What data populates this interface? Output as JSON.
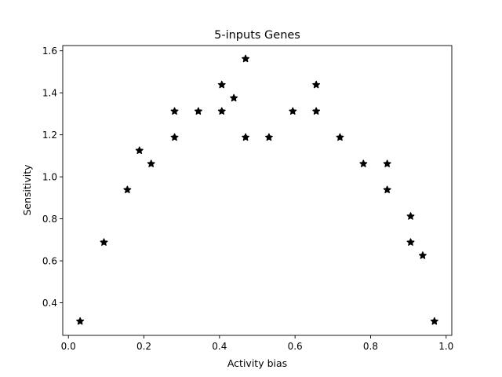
{
  "chart_data": {
    "type": "scatter",
    "title": "5-inputs Genes",
    "xlabel": "Activity bias",
    "ylabel": "Sensitivity",
    "xlim": [
      -0.015,
      1.015
    ],
    "ylim": [
      0.245,
      1.625
    ],
    "grid": false,
    "marker": "star",
    "marker_color": "#000000",
    "xticks": [
      {
        "value": 0.0,
        "label": "0.0"
      },
      {
        "value": 0.2,
        "label": "0.2"
      },
      {
        "value": 0.4,
        "label": "0.4"
      },
      {
        "value": 0.6,
        "label": "0.6"
      },
      {
        "value": 0.8,
        "label": "0.8"
      },
      {
        "value": 1.0,
        "label": "1.0"
      }
    ],
    "yticks": [
      {
        "value": 0.4,
        "label": "0.4"
      },
      {
        "value": 0.6,
        "label": "0.6"
      },
      {
        "value": 0.8,
        "label": "0.8"
      },
      {
        "value": 1.0,
        "label": "1.0"
      },
      {
        "value": 1.2,
        "label": "1.2"
      },
      {
        "value": 1.4,
        "label": "1.4"
      },
      {
        "value": 1.6,
        "label": "1.6"
      }
    ],
    "points": [
      {
        "x": 0.031,
        "y": 0.312
      },
      {
        "x": 0.094,
        "y": 0.688
      },
      {
        "x": 0.156,
        "y": 0.938
      },
      {
        "x": 0.188,
        "y": 1.125
      },
      {
        "x": 0.219,
        "y": 1.062
      },
      {
        "x": 0.281,
        "y": 1.188
      },
      {
        "x": 0.281,
        "y": 1.312
      },
      {
        "x": 0.344,
        "y": 1.312
      },
      {
        "x": 0.406,
        "y": 1.312
      },
      {
        "x": 0.406,
        "y": 1.438
      },
      {
        "x": 0.438,
        "y": 1.375
      },
      {
        "x": 0.469,
        "y": 1.188
      },
      {
        "x": 0.469,
        "y": 1.562
      },
      {
        "x": 0.531,
        "y": 1.188
      },
      {
        "x": 0.594,
        "y": 1.312
      },
      {
        "x": 0.656,
        "y": 1.312
      },
      {
        "x": 0.656,
        "y": 1.438
      },
      {
        "x": 0.719,
        "y": 1.188
      },
      {
        "x": 0.781,
        "y": 1.062
      },
      {
        "x": 0.844,
        "y": 1.062
      },
      {
        "x": 0.844,
        "y": 0.938
      },
      {
        "x": 0.906,
        "y": 0.812
      },
      {
        "x": 0.906,
        "y": 0.688
      },
      {
        "x": 0.938,
        "y": 0.625
      },
      {
        "x": 0.969,
        "y": 0.312
      }
    ]
  }
}
